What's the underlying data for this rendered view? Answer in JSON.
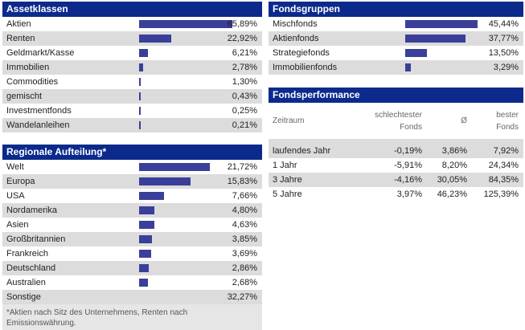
{
  "assetklassen": {
    "title": "Assetklassen",
    "items": [
      {
        "label": "Aktien",
        "value": "65,89%",
        "pct": 65.89
      },
      {
        "label": "Renten",
        "value": "22,92%",
        "pct": 22.92
      },
      {
        "label": "Geldmarkt/Kasse",
        "value": "6,21%",
        "pct": 6.21
      },
      {
        "label": "Immobilien",
        "value": "2,78%",
        "pct": 2.78
      },
      {
        "label": "Commodities",
        "value": "1,30%",
        "pct": 1.3
      },
      {
        "label": "gemischt",
        "value": "0,43%",
        "pct": 0.43
      },
      {
        "label": "Investmentfonds",
        "value": "0,25%",
        "pct": 0.25
      },
      {
        "label": "Wandelanleihen",
        "value": "0,21%",
        "pct": 0.21
      }
    ]
  },
  "regionale": {
    "title": "Regionale Aufteilung*",
    "items": [
      {
        "label": "Welt",
        "value": "21,72%",
        "pct": 21.72
      },
      {
        "label": "Europa",
        "value": "15,83%",
        "pct": 15.83
      },
      {
        "label": "USA",
        "value": "7,66%",
        "pct": 7.66
      },
      {
        "label": "Nordamerika",
        "value": "4,80%",
        "pct": 4.8
      },
      {
        "label": "Asien",
        "value": "4,63%",
        "pct": 4.63
      },
      {
        "label": "Großbritannien",
        "value": "3,85%",
        "pct": 3.85
      },
      {
        "label": "Frankreich",
        "value": "3,69%",
        "pct": 3.69
      },
      {
        "label": "Deutschland",
        "value": "2,86%",
        "pct": 2.86
      },
      {
        "label": "Australien",
        "value": "2,68%",
        "pct": 2.68
      },
      {
        "label": "Sonstige",
        "value": "32,27%",
        "pct": null
      }
    ],
    "footnote": "*Aktien nach Sitz des Unternehmens, Renten nach Emissionswährung."
  },
  "fondsgruppen": {
    "title": "Fondsgruppen",
    "items": [
      {
        "label": "Mischfonds",
        "value": "45,44%",
        "pct": 45.44
      },
      {
        "label": "Aktienfonds",
        "value": "37,77%",
        "pct": 37.77
      },
      {
        "label": "Strategiefonds",
        "value": "13,50%",
        "pct": 13.5
      },
      {
        "label": "Immobilienfonds",
        "value": "3,29%",
        "pct": 3.29
      }
    ]
  },
  "performance": {
    "title": "Fondsperformance",
    "headers": {
      "zeitraum": "Zeitraum",
      "worst_line1": "schlechtester",
      "worst_line2": "Fonds",
      "avg": "Ø",
      "best_line1": "bester",
      "best_line2": "Fonds"
    },
    "rows": [
      {
        "period": "laufendes Jahr",
        "worst": "-0,19%",
        "avg": "3,86%",
        "best": "7,92%"
      },
      {
        "period": "1 Jahr",
        "worst": "-5,91%",
        "avg": "8,20%",
        "best": "24,34%"
      },
      {
        "period": "3 Jahre",
        "worst": "-4,16%",
        "avg": "30,05%",
        "best": "84,35%"
      },
      {
        "period": "5 Jahre",
        "worst": "3,97%",
        "avg": "46,23%",
        "best": "125,39%"
      }
    ]
  }
}
